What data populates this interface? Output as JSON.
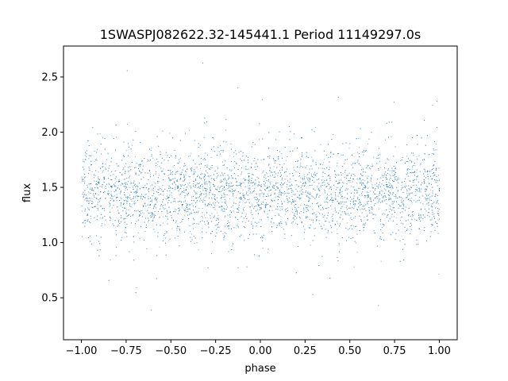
{
  "chart_data": {
    "type": "scatter",
    "title": "1SWASPJ082622.32-145441.1 Period 11149297.0s",
    "xlabel": "phase",
    "ylabel": "flux",
    "xlim": [
      -1.1,
      1.1
    ],
    "ylim": [
      0.12,
      2.78
    ],
    "xticks": [
      {
        "value": -1.0,
        "label": "−1.00"
      },
      {
        "value": -0.75,
        "label": "−0.75"
      },
      {
        "value": -0.5,
        "label": "−0.50"
      },
      {
        "value": -0.25,
        "label": "−0.25"
      },
      {
        "value": 0.0,
        "label": "0.00"
      },
      {
        "value": 0.25,
        "label": "0.25"
      },
      {
        "value": 0.5,
        "label": "0.50"
      },
      {
        "value": 0.75,
        "label": "0.75"
      },
      {
        "value": 1.0,
        "label": "1.00"
      }
    ],
    "yticks": [
      {
        "value": 0.5,
        "label": "0.5"
      },
      {
        "value": 1.0,
        "label": "1.0"
      },
      {
        "value": 1.5,
        "label": "1.5"
      },
      {
        "value": 2.0,
        "label": "2.0"
      },
      {
        "value": 2.5,
        "label": "2.5"
      }
    ],
    "grid": false,
    "series": [
      {
        "color": "#1f77b4",
        "x_range": [
          -1.0,
          1.0
        ],
        "median_flux": 1.45,
        "typical_flux_range": [
          1.1,
          1.8
        ],
        "full_flux_range": [
          0.25,
          2.7
        ]
      }
    ]
  }
}
